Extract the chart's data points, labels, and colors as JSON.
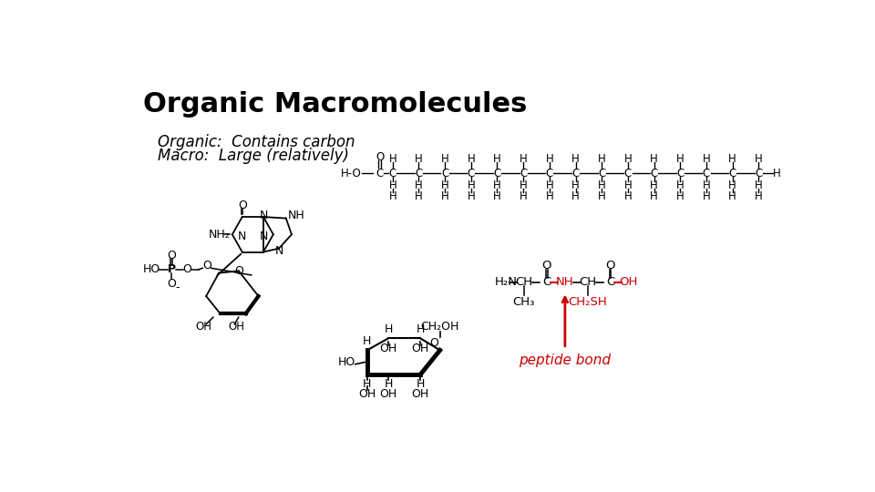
{
  "title": "Organic Macromolecules",
  "subtitle_line1": "Organic:  Contains carbon",
  "subtitle_line2": "Macro:  Large (relatively)",
  "bg_color": "#ffffff",
  "title_color": "#000000",
  "subtitle_color": "#000000",
  "red_color": "#cc0000",
  "title_fontsize": 22,
  "subtitle_fontsize": 12
}
